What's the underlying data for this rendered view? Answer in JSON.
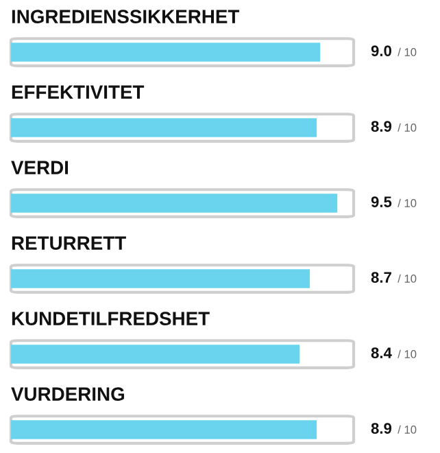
{
  "chart_data": {
    "type": "bar",
    "orientation": "horizontal",
    "categories": [
      "INGREDIENSSIKKERHET",
      "EFFEKTIVITET",
      "VERDI",
      "RETURRETT",
      "KUNDETILFREDSHET",
      "VURDERING"
    ],
    "values": [
      9.0,
      8.9,
      9.5,
      8.7,
      8.4,
      8.9
    ],
    "value_labels": [
      "9.0",
      "8.9",
      "9.5",
      "8.7",
      "8.4",
      "8.9"
    ],
    "annotations": [
      "/ 10",
      "/ 10",
      "/ 10",
      "/ 10",
      "/ 10",
      "/ 10"
    ],
    "color": "#6ad4ee"
  }
}
